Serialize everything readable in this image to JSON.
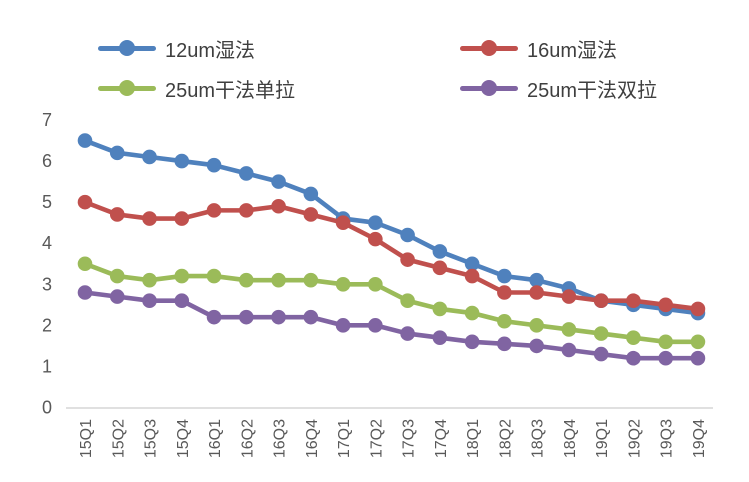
{
  "chart_data": {
    "type": "line",
    "title": "",
    "xlabel": "",
    "ylabel": "",
    "grid": false,
    "legend_position": "top",
    "ylim": [
      0,
      7
    ],
    "y_ticks": [
      0,
      1,
      2,
      3,
      4,
      5,
      6,
      7
    ],
    "categories": [
      "15Q1",
      "15Q2",
      "15Q3",
      "15Q4",
      "16Q1",
      "16Q2",
      "16Q3",
      "16Q4",
      "17Q1",
      "17Q2",
      "17Q3",
      "17Q4",
      "18Q1",
      "18Q2",
      "18Q3",
      "18Q4",
      "19Q1",
      "19Q2",
      "19Q3",
      "19Q4"
    ],
    "series": [
      {
        "name": "12um湿法",
        "color": "#4F81BD",
        "values": [
          6.5,
          6.2,
          6.1,
          6.0,
          5.9,
          5.7,
          5.5,
          5.2,
          4.6,
          4.5,
          4.2,
          3.8,
          3.5,
          3.2,
          3.1,
          2.9,
          2.6,
          2.5,
          2.4,
          2.3
        ]
      },
      {
        "name": "16um湿法",
        "color": "#C0504D",
        "values": [
          5.0,
          4.7,
          4.6,
          4.6,
          4.8,
          4.8,
          4.9,
          4.7,
          4.5,
          4.1,
          3.6,
          3.4,
          3.2,
          2.8,
          2.8,
          2.7,
          2.6,
          2.6,
          2.5,
          2.4
        ]
      },
      {
        "name": "25um干法单拉",
        "color": "#9BBB59",
        "values": [
          3.5,
          3.2,
          3.1,
          3.2,
          3.2,
          3.1,
          3.1,
          3.1,
          3.0,
          3.0,
          2.6,
          2.4,
          2.3,
          2.1,
          2.0,
          1.9,
          1.8,
          1.7,
          1.6,
          1.6
        ]
      },
      {
        "name": "25um干法双拉",
        "color": "#8064A2",
        "values": [
          2.8,
          2.7,
          2.6,
          2.6,
          2.2,
          2.2,
          2.2,
          2.2,
          2.0,
          2.0,
          1.8,
          1.7,
          1.6,
          1.55,
          1.5,
          1.4,
          1.3,
          1.2,
          1.2,
          1.2
        ]
      }
    ]
  },
  "style_tokens": {
    "axis_line_color": "#D6D6D6",
    "tick_label_color": "#595959",
    "legend_text_color": "#3F3F3F",
    "background": "#FFFFFF"
  }
}
